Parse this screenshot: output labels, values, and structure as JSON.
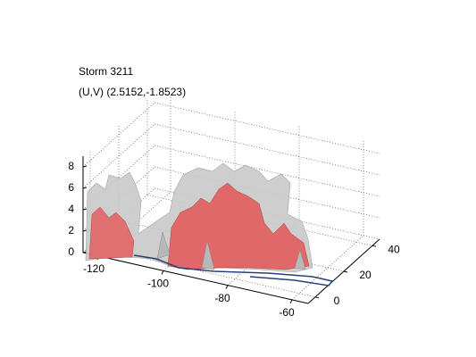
{
  "chart_data": {
    "type": "isosurface3d",
    "title": "Storm 3211",
    "subtitle": "(U,V) (2.5152,-1.8523)",
    "xlim": [
      -125,
      -55
    ],
    "ylim": [
      -5,
      45
    ],
    "zlim": [
      0,
      9
    ],
    "xticks": [
      -120,
      -100,
      -80,
      -60
    ],
    "yticks": [
      0,
      20,
      40
    ],
    "zticks": [
      0,
      2,
      4,
      6,
      8
    ],
    "grid": true
  }
}
